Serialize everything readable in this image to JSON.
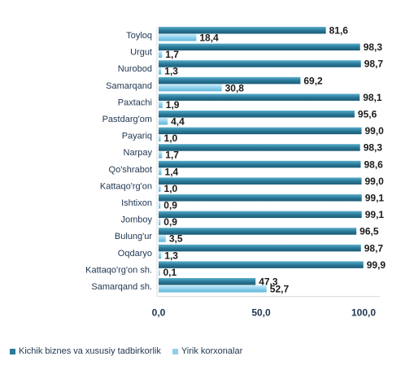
{
  "chart_data": {
    "type": "bar",
    "orientation": "horizontal",
    "categories": [
      "Toyloq",
      "Urgut",
      "Nurobod",
      "Samarqand",
      "Paxtachi",
      "Pastdarg'om",
      "Payariq",
      "Narpay",
      "Qo'shrabot",
      "Kattaqo'rg'on",
      "Ishtixon",
      "Jomboy",
      "Bulung'ur",
      "Oqdaryo",
      "Kattaqo'rg'on sh.",
      "Samarqand sh."
    ],
    "series": [
      {
        "name": "Kichik biznes va xususiy tadbirkorlik",
        "color": "#2a7a9a",
        "values": [
          81.6,
          98.3,
          98.7,
          69.2,
          98.1,
          95.6,
          99.0,
          98.3,
          98.6,
          99.0,
          99.1,
          99.1,
          96.5,
          98.7,
          99.9,
          47.3
        ],
        "labels": [
          "81,6",
          "98,3",
          "98,7",
          "69,2",
          "98,1",
          "95,6",
          "99,0",
          "98,3",
          "98,6",
          "99,0",
          "99,1",
          "99,1",
          "96,5",
          "98,7",
          "99,9",
          "47,3"
        ]
      },
      {
        "name": "Yirik korxonalar",
        "color": "#8fd0ec",
        "values": [
          18.4,
          1.7,
          1.3,
          30.8,
          1.9,
          4.4,
          1.0,
          1.7,
          1.4,
          1.0,
          0.9,
          0.9,
          3.5,
          1.3,
          0.1,
          52.7
        ],
        "labels": [
          "18,4",
          "1,7",
          "1,3",
          "30,8",
          "1,9",
          "4,4",
          "1,0",
          "1,7",
          "1,4",
          "1,0",
          "0,9",
          "0,9",
          "3,5",
          "1,3",
          "0,1",
          "52,7"
        ]
      }
    ],
    "xlim": [
      0,
      100
    ],
    "xticks": [
      0,
      50,
      100
    ],
    "xtick_labels": [
      "0,0",
      "50,0",
      "100,0"
    ],
    "grid": false,
    "legend": "bottom-left"
  }
}
